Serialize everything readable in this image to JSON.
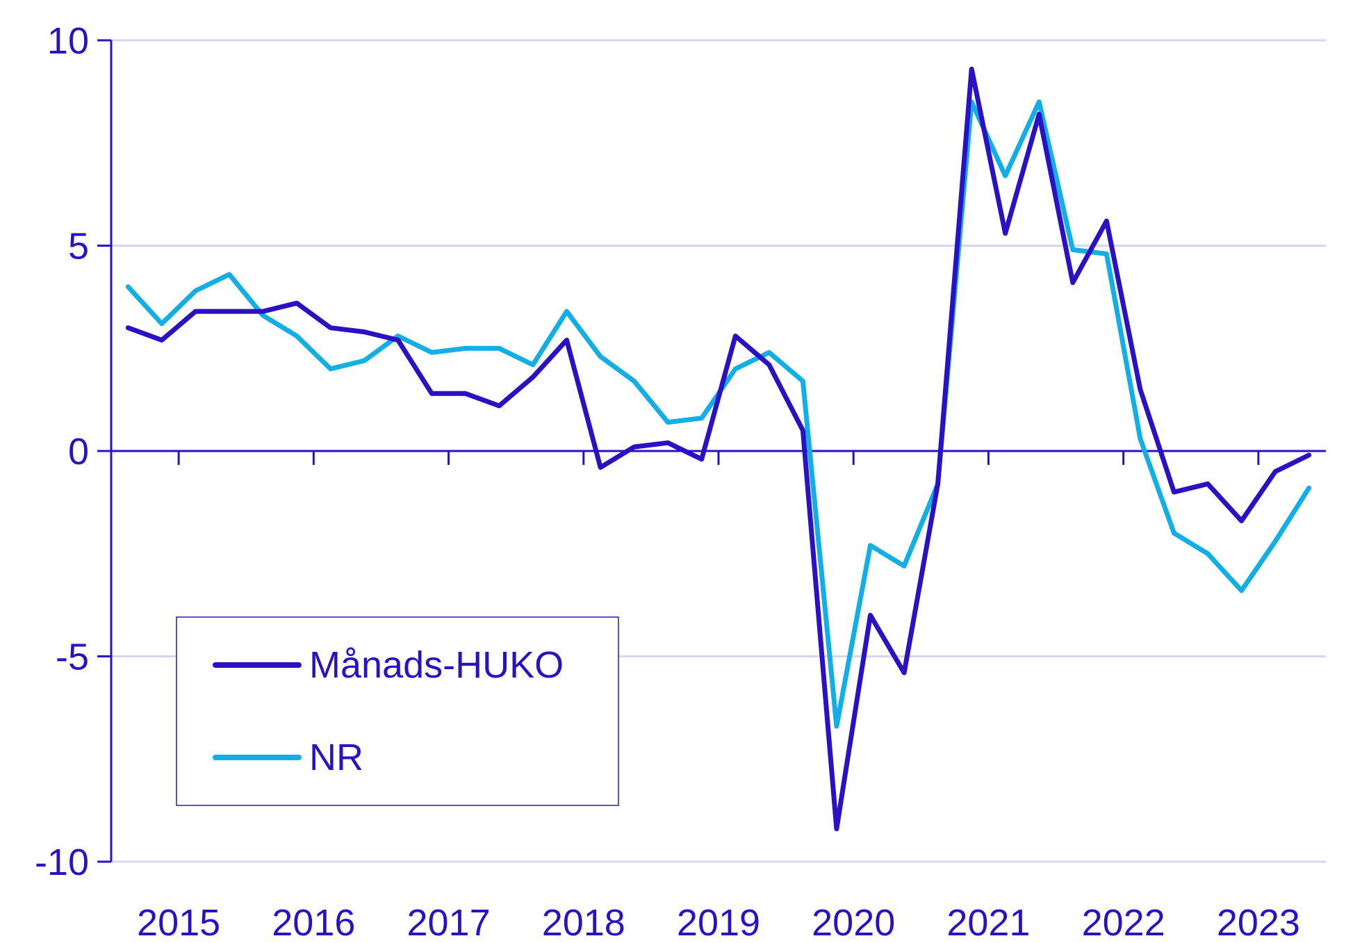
{
  "chart_data": {
    "type": "line",
    "title": "",
    "xlabel": "",
    "ylabel": "",
    "ylim": [
      -10,
      10
    ],
    "yticks": [
      10,
      5,
      0,
      -5,
      -10
    ],
    "ytick_labels": [
      "10",
      "5",
      "0",
      "-5",
      "-10"
    ],
    "xlim": [
      2014.5,
      2023.5
    ],
    "xtick_labels": [
      "2015",
      "2016",
      "2017",
      "2018",
      "2019",
      "2020",
      "2021",
      "2022",
      "2023"
    ],
    "grid": true,
    "legend": "bottom-left",
    "x": [
      2014.625,
      2014.875,
      2015.125,
      2015.375,
      2015.625,
      2015.875,
      2016.125,
      2016.375,
      2016.625,
      2016.875,
      2017.125,
      2017.375,
      2017.625,
      2017.875,
      2018.125,
      2018.375,
      2018.625,
      2018.875,
      2019.125,
      2019.375,
      2019.625,
      2019.875,
      2020.125,
      2020.375,
      2020.625,
      2020.875,
      2021.125,
      2021.375,
      2021.625,
      2021.875,
      2022.125,
      2022.375,
      2022.625,
      2022.875,
      2023.125,
      2023.375
    ],
    "series": [
      {
        "name": "Månads-HUKO",
        "color": "#2a12c4",
        "values": [
          3.0,
          2.7,
          3.4,
          3.4,
          3.4,
          3.6,
          3.0,
          2.9,
          2.7,
          1.4,
          1.4,
          1.1,
          1.8,
          2.7,
          -0.4,
          0.1,
          0.2,
          -0.2,
          2.8,
          2.1,
          0.5,
          -9.2,
          -4.0,
          -5.4,
          -0.8,
          9.3,
          5.3,
          8.2,
          4.1,
          5.6,
          1.5,
          -1.0,
          -0.8,
          -1.7,
          -0.5,
          -0.1
        ]
      },
      {
        "name": "NR",
        "color": "#12aee6",
        "values": [
          4.0,
          3.1,
          3.9,
          4.3,
          3.3,
          2.8,
          2.0,
          2.2,
          2.8,
          2.4,
          2.5,
          2.5,
          2.1,
          3.4,
          2.3,
          1.7,
          0.7,
          0.8,
          2.0,
          2.4,
          1.7,
          -6.7,
          -2.3,
          -2.8,
          -0.8,
          8.5,
          6.7,
          8.5,
          4.9,
          4.8,
          0.3,
          -2.0,
          -2.5,
          -3.4,
          -2.2,
          -0.9
        ]
      }
    ]
  }
}
